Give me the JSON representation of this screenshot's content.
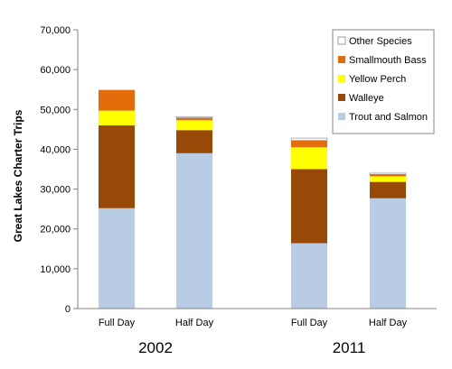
{
  "chart_data": {
    "type": "bar",
    "stacked": true,
    "ylabel": "Great Lakes Charter Trips",
    "ylim": [
      0,
      70000
    ],
    "yticks": [
      0,
      10000,
      20000,
      30000,
      40000,
      50000,
      60000,
      70000
    ],
    "ytick_labels": [
      "0",
      "10,000",
      "20,000",
      "30,000",
      "40,000",
      "50,000",
      "60,000",
      "70,000"
    ],
    "categories": [
      "Full Day",
      "Half Day",
      "Full Day",
      "Half Day"
    ],
    "groups": [
      {
        "label": "2002",
        "categories": [
          "Full Day",
          "Half Day"
        ]
      },
      {
        "label": "2011",
        "categories": [
          "Full Day",
          "Half Day"
        ]
      }
    ],
    "series": [
      {
        "name": "Trout and Salmon",
        "color": "#b8cce4",
        "values": [
          25200,
          39000,
          16400,
          27700
        ]
      },
      {
        "name": "Walleye",
        "color": "#984807",
        "values": [
          20800,
          5800,
          18600,
          4100
        ]
      },
      {
        "name": "Yellow Perch",
        "color": "#ffff00",
        "values": [
          3700,
          2500,
          5500,
          1400
        ]
      },
      {
        "name": "Smallmouth Bass",
        "color": "#e46c0a",
        "values": [
          5200,
          600,
          1700,
          500
        ]
      },
      {
        "name": "Other Species",
        "color": "#ffffff",
        "values": [
          0,
          300,
          600,
          300
        ]
      }
    ],
    "legend_order": [
      "Other Species",
      "Smallmouth Bass",
      "Yellow Perch",
      "Walleye",
      "Trout and Salmon"
    ],
    "legend_position": "top-right",
    "grid": false
  }
}
